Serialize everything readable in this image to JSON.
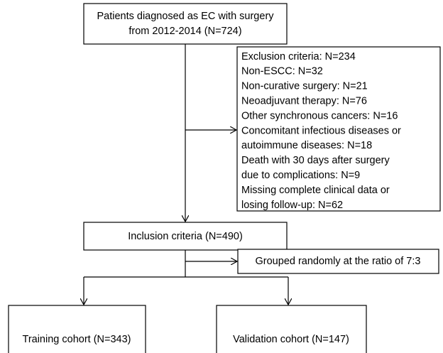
{
  "nodes": [
    {
      "lines": [
        "Patients diagnosed as EC with surgery",
        "from 2012-2014 (N=724)"
      ]
    },
    {
      "lines": [
        "Exclusion criteria: N=234",
        "Non-ESCC: N=32",
        "Non-curative surgery: N=21",
        "Neoadjuvant therapy: N=76",
        "Other synchronous cancers: N=16",
        "Concomitant infectious diseases or",
        "autoimmune diseases: N=18",
        "Death with 30 days after surgery",
        "due to complications: N=9",
        "Missing complete clinical data or",
        "losing follow-up: N=62"
      ]
    },
    {
      "lines": [
        "Inclusion criteria (N=490)"
      ]
    },
    {
      "lines": [
        "Grouped randomly at the ratio of 7:3"
      ]
    },
    {
      "lines": [
        "Training cohort (N=343)"
      ]
    },
    {
      "lines": [
        "Validation cohort (N=147)"
      ]
    }
  ]
}
